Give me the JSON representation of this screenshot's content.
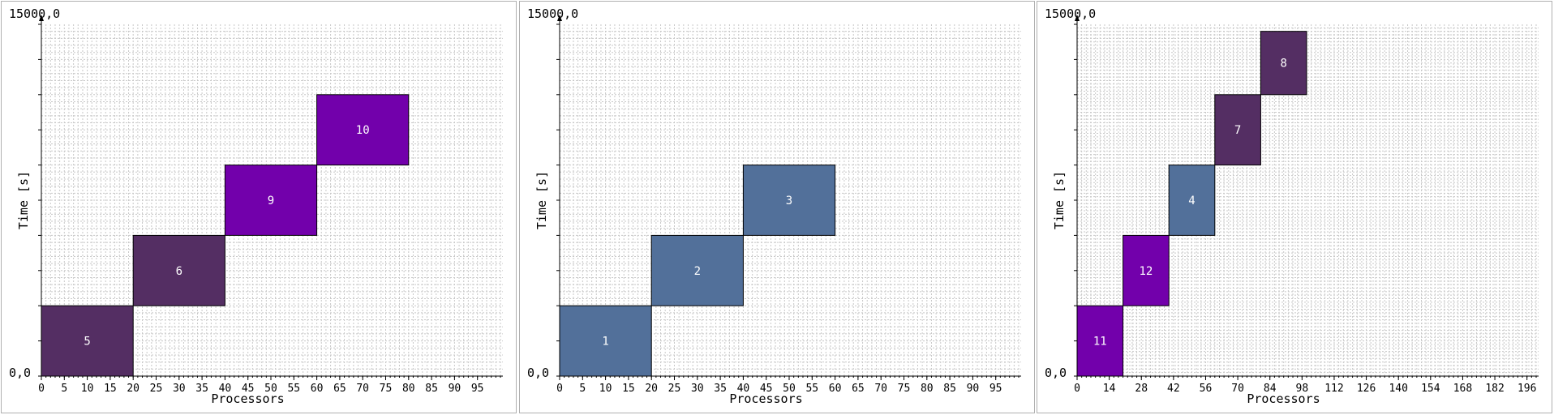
{
  "chart_data": [
    {
      "type": "gantt",
      "xlabel": "Processors",
      "ylabel": "Time [s]",
      "ylim": [
        0,
        15000
      ],
      "y_top_label": "15000,0",
      "y_bottom_label": "0,0",
      "xlim": [
        0,
        100
      ],
      "xticks": [
        0,
        5,
        10,
        15,
        20,
        25,
        30,
        35,
        40,
        45,
        50,
        55,
        60,
        65,
        70,
        75,
        80,
        85,
        90,
        95
      ],
      "jobs": [
        {
          "id": "5",
          "x0": 0,
          "x1": 20,
          "y0": 0,
          "y1": 3000,
          "color": "#542e63"
        },
        {
          "id": "6",
          "x0": 20,
          "x1": 40,
          "y0": 3000,
          "y1": 6000,
          "color": "#542e63"
        },
        {
          "id": "9",
          "x0": 40,
          "x1": 60,
          "y0": 6000,
          "y1": 9000,
          "color": "#7200ab"
        },
        {
          "id": "10",
          "x0": 60,
          "x1": 80,
          "y0": 9000,
          "y1": 12000,
          "color": "#7200ab"
        }
      ]
    },
    {
      "type": "gantt",
      "xlabel": "Processors",
      "ylabel": "Time [s]",
      "ylim": [
        0,
        15000
      ],
      "y_top_label": "15000,0",
      "y_bottom_label": "0,0",
      "xlim": [
        0,
        100
      ],
      "xticks": [
        0,
        5,
        10,
        15,
        20,
        25,
        30,
        35,
        40,
        45,
        50,
        55,
        60,
        65,
        70,
        75,
        80,
        85,
        90,
        95
      ],
      "jobs": [
        {
          "id": "1",
          "x0": 0,
          "x1": 20,
          "y0": 0,
          "y1": 3000,
          "color": "#52709a"
        },
        {
          "id": "2",
          "x0": 20,
          "x1": 40,
          "y0": 3000,
          "y1": 6000,
          "color": "#52709a"
        },
        {
          "id": "3",
          "x0": 40,
          "x1": 60,
          "y0": 6000,
          "y1": 9000,
          "color": "#52709a"
        }
      ]
    },
    {
      "type": "gantt",
      "xlabel": "Processors",
      "ylabel": "Time [s]",
      "ylim": [
        0,
        15000
      ],
      "y_top_label": "15000,0",
      "y_bottom_label": "0,0",
      "xlim": [
        0,
        200
      ],
      "xticks": [
        0,
        14,
        28,
        42,
        56,
        70,
        84,
        98,
        112,
        126,
        140,
        154,
        168,
        182,
        196
      ],
      "jobs": [
        {
          "id": "11",
          "x0": 0,
          "x1": 20,
          "y0": 0,
          "y1": 3000,
          "color": "#7200ab"
        },
        {
          "id": "12",
          "x0": 20,
          "x1": 40,
          "y0": 3000,
          "y1": 6000,
          "color": "#7200ab"
        },
        {
          "id": "4",
          "x0": 40,
          "x1": 60,
          "y0": 6000,
          "y1": 9000,
          "color": "#52709a"
        },
        {
          "id": "7",
          "x0": 60,
          "x1": 80,
          "y0": 9000,
          "y1": 12000,
          "color": "#542e63"
        },
        {
          "id": "8",
          "x0": 80,
          "x1": 100,
          "y0": 12000,
          "y1": 14700,
          "color": "#542e63"
        }
      ]
    }
  ]
}
